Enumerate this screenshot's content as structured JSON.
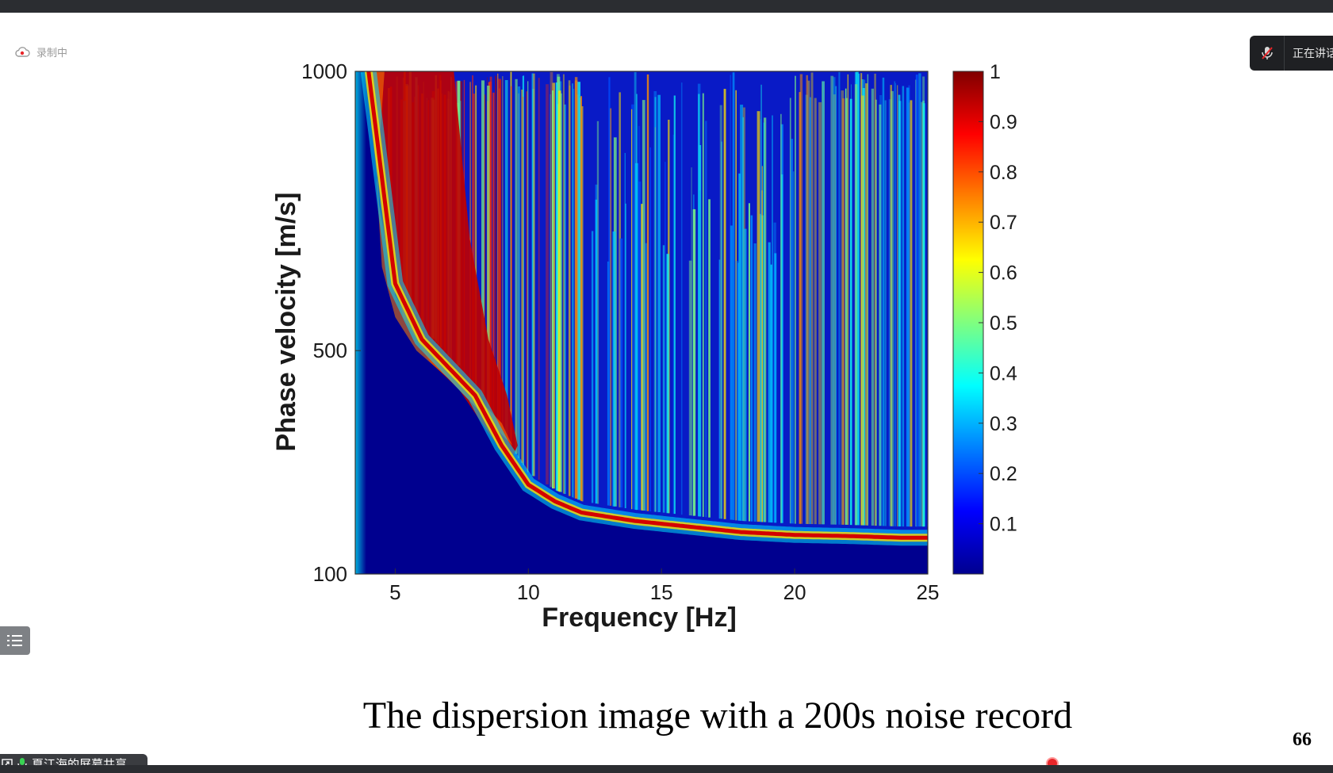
{
  "window": {
    "recording_label": "录制中",
    "speaking_label": "正在讲话",
    "share_label": "夏江海的屏幕共享"
  },
  "slide": {
    "title": "The dispersion image with a 200s noise record",
    "page_number": "66"
  },
  "colors": {
    "bar": "#2b2d31",
    "colormap": "jet",
    "low": "#00008f",
    "high": "#800000"
  },
  "chart_data": {
    "type": "heatmap",
    "title": "",
    "xlabel": "Frequency  [Hz]",
    "ylabel": "Phase velocity  [m/s]",
    "xlim": [
      3.5,
      25
    ],
    "ylim": [
      100,
      1000
    ],
    "x_ticks": [
      5,
      10,
      15,
      20,
      25
    ],
    "y_ticks": [
      100,
      500,
      1000
    ],
    "grid": false,
    "colorbar": {
      "range": [
        0,
        1
      ],
      "ticks": [
        0.1,
        0.2,
        0.3,
        0.4,
        0.5,
        0.6,
        0.7,
        0.8,
        0.9,
        1
      ],
      "tick_labels": [
        "0.1",
        "0.2",
        "0.3",
        "0.4",
        "0.5",
        "0.6",
        "0.7",
        "0.8",
        "0.9",
        "1"
      ]
    },
    "dispersion_curve": {
      "x": [
        4,
        5,
        6,
        7,
        8,
        9,
        10,
        11,
        12,
        14,
        16,
        18,
        20,
        22,
        24,
        25
      ],
      "y": [
        1000,
        620,
        520,
        470,
        420,
        330,
        260,
        230,
        210,
        195,
        185,
        175,
        170,
        168,
        165,
        165
      ]
    }
  }
}
